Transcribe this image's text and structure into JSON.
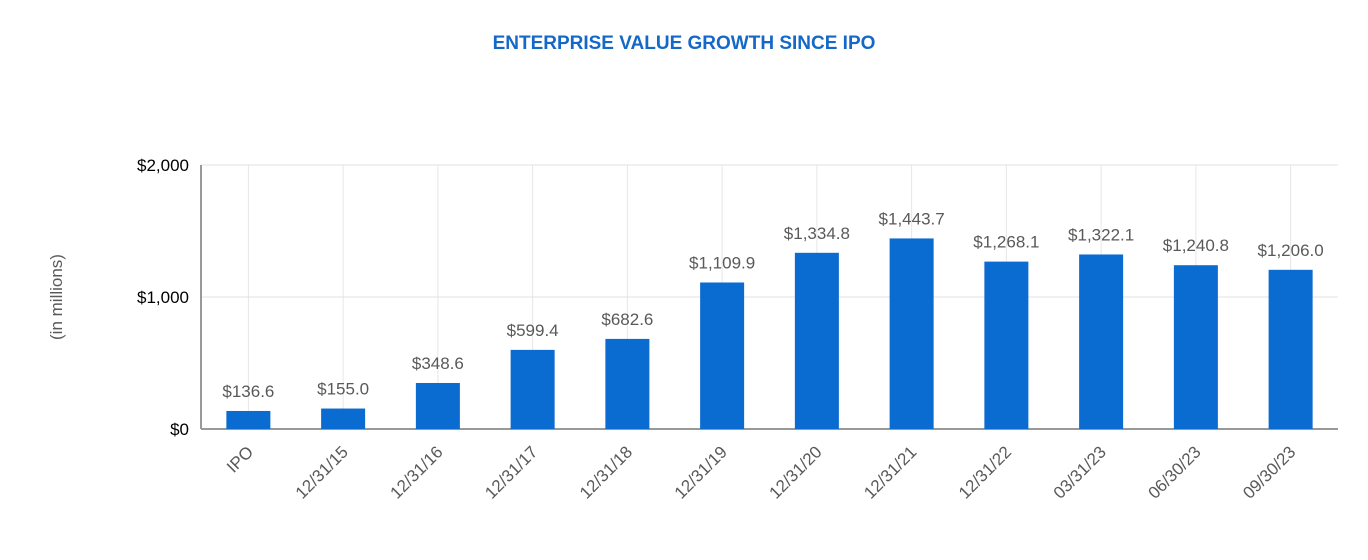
{
  "chart_data": {
    "type": "bar",
    "title": "ENTERPRISE VALUE GROWTH SINCE IPO",
    "xlabel": "",
    "ylabel": "(in millions)",
    "ylim": [
      0,
      2000
    ],
    "yticks": [
      0,
      1000,
      2000
    ],
    "ytick_labels": [
      "$0",
      "$1,000",
      "$2,000"
    ],
    "grid": "on",
    "bar_color": "#0A6BD0",
    "categories": [
      "IPO",
      "12/31/15",
      "12/31/16",
      "12/31/17",
      "12/31/18",
      "12/31/19",
      "12/31/20",
      "12/31/21",
      "12/31/22",
      "03/31/23",
      "06/30/23",
      "09/30/23"
    ],
    "values": [
      136.6,
      155.0,
      348.6,
      599.4,
      682.6,
      1109.9,
      1334.8,
      1443.7,
      1268.1,
      1322.1,
      1240.8,
      1206.0
    ],
    "data_labels": [
      "$136.6",
      "$155.0",
      "$348.6",
      "$599.4",
      "$682.6",
      "$1,109.9",
      "$1,334.8",
      "$1,443.7",
      "$1,268.1",
      "$1,322.1",
      "$1,240.8",
      "$1,206.0"
    ]
  }
}
